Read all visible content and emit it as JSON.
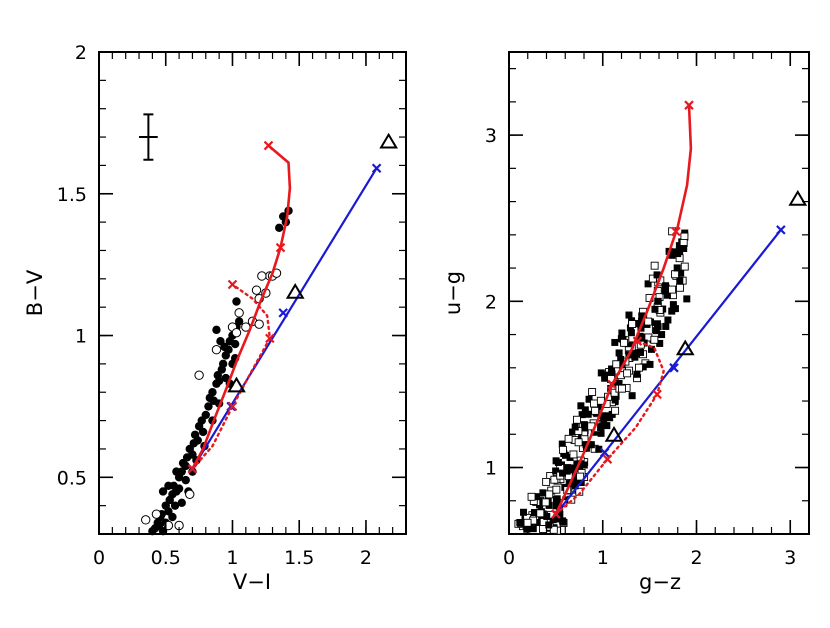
{
  "chart_data": [
    {
      "type": "scatter",
      "xlabel": "V−I",
      "ylabel": "B−V",
      "xlim": [
        0,
        2.3
      ],
      "ylim": [
        0.3,
        2.0
      ],
      "xticks": [
        "0",
        "0.5",
        "1",
        "1.5",
        "2"
      ],
      "yticks": [
        "0.5",
        "1",
        "1.5",
        "2"
      ],
      "colors": {
        "red": "#e8191e",
        "blue": "#1919d6"
      },
      "error_bar": {
        "x": 0.37,
        "y": 1.7,
        "xerr": 0.07,
        "yerr": 0.08
      },
      "filled_points": [
        [
          0.42,
          0.32
        ],
        [
          0.44,
          0.34
        ],
        [
          0.46,
          0.36
        ],
        [
          0.48,
          0.31
        ],
        [
          0.5,
          0.4
        ],
        [
          0.52,
          0.38
        ],
        [
          0.53,
          0.42
        ],
        [
          0.55,
          0.44
        ],
        [
          0.56,
          0.47
        ],
        [
          0.58,
          0.45
        ],
        [
          0.57,
          0.4
        ],
        [
          0.6,
          0.5
        ],
        [
          0.62,
          0.52
        ],
        [
          0.63,
          0.55
        ],
        [
          0.65,
          0.54
        ],
        [
          0.66,
          0.57
        ],
        [
          0.68,
          0.6
        ],
        [
          0.7,
          0.58
        ],
        [
          0.71,
          0.62
        ],
        [
          0.72,
          0.65
        ],
        [
          0.74,
          0.63
        ],
        [
          0.75,
          0.68
        ],
        [
          0.77,
          0.7
        ],
        [
          0.78,
          0.66
        ],
        [
          0.8,
          0.72
        ],
        [
          0.82,
          0.75
        ],
        [
          0.83,
          0.78
        ],
        [
          0.85,
          0.8
        ],
        [
          0.86,
          0.77
        ],
        [
          0.88,
          0.83
        ],
        [
          0.89,
          0.86
        ],
        [
          0.9,
          0.84
        ],
        [
          0.92,
          0.88
        ],
        [
          0.93,
          0.9
        ],
        [
          0.95,
          0.93
        ],
        [
          0.97,
          0.95
        ],
        [
          0.98,
          0.98
        ],
        [
          1.0,
          1.0
        ],
        [
          1.02,
          0.97
        ],
        [
          1.03,
          1.03
        ],
        [
          1.05,
          1.05
        ],
        [
          0.6,
          0.46
        ],
        [
          0.65,
          0.49
        ],
        [
          0.7,
          0.52
        ],
        [
          0.55,
          0.36
        ],
        [
          0.5,
          0.34
        ],
        [
          0.47,
          0.37
        ],
        [
          0.62,
          0.41
        ],
        [
          0.67,
          0.45
        ],
        [
          0.73,
          0.56
        ],
        [
          0.79,
          0.61
        ],
        [
          0.85,
          0.7
        ],
        [
          0.9,
          0.76
        ],
        [
          0.95,
          0.85
        ],
        [
          1.0,
          0.9
        ],
        [
          0.98,
          0.83
        ],
        [
          1.02,
          0.92
        ],
        [
          0.94,
          0.96
        ],
        [
          0.91,
          0.98
        ],
        [
          0.88,
          1.02
        ],
        [
          1.03,
          1.12
        ],
        [
          1.35,
          1.38
        ],
        [
          1.38,
          1.42
        ],
        [
          1.4,
          1.4
        ],
        [
          1.42,
          1.44
        ],
        [
          0.4,
          0.31
        ],
        [
          0.45,
          0.33
        ],
        [
          0.48,
          0.45
        ],
        [
          0.52,
          0.47
        ],
        [
          0.58,
          0.52
        ]
      ],
      "open_points": [
        [
          0.35,
          0.35
        ],
        [
          0.43,
          0.37
        ],
        [
          0.52,
          0.33
        ],
        [
          0.6,
          0.33
        ],
        [
          0.68,
          0.44
        ],
        [
          0.88,
          0.95
        ],
        [
          1.0,
          1.03
        ],
        [
          1.03,
          1.01
        ],
        [
          1.1,
          1.03
        ],
        [
          1.15,
          1.05
        ],
        [
          1.18,
          1.16
        ],
        [
          1.2,
          1.13
        ],
        [
          1.2,
          1.04
        ],
        [
          1.25,
          1.15
        ],
        [
          1.28,
          1.21
        ],
        [
          1.3,
          1.21
        ],
        [
          1.33,
          1.22
        ],
        [
          1.22,
          1.21
        ],
        [
          0.75,
          0.86
        ],
        [
          1.05,
          1.08
        ]
      ],
      "triangles": [
        [
          1.03,
          0.82
        ],
        [
          1.47,
          1.15
        ],
        [
          2.17,
          1.68
        ]
      ],
      "red_solid": [
        [
          0.7,
          0.53
        ],
        [
          0.78,
          0.6
        ],
        [
          0.86,
          0.7
        ],
        [
          0.96,
          0.82
        ],
        [
          1.04,
          0.92
        ],
        [
          1.13,
          1.02
        ],
        [
          1.21,
          1.12
        ],
        [
          1.3,
          1.22
        ],
        [
          1.36,
          1.31
        ],
        [
          1.41,
          1.42
        ],
        [
          1.43,
          1.52
        ],
        [
          1.42,
          1.61
        ],
        [
          1.27,
          1.67
        ]
      ],
      "red_markers": [
        [
          0.7,
          0.53
        ],
        [
          1.36,
          1.31
        ],
        [
          1.27,
          1.67
        ],
        [
          1.0,
          1.18
        ]
      ],
      "red_dotted": [
        [
          0.7,
          0.53
        ],
        [
          0.85,
          0.61
        ],
        [
          1.0,
          0.75
        ],
        [
          1.15,
          0.88
        ],
        [
          1.28,
          0.99
        ],
        [
          1.26,
          1.07
        ],
        [
          1.15,
          1.13
        ],
        [
          1.0,
          1.18
        ]
      ],
      "red_dotted_markers": [
        [
          1.0,
          0.75
        ],
        [
          1.28,
          0.99
        ]
      ],
      "blue_line": [
        [
          0.7,
          0.53
        ],
        [
          2.08,
          1.59
        ]
      ],
      "blue_markers": [
        [
          0.7,
          0.53
        ],
        [
          0.99,
          0.75
        ],
        [
          1.38,
          1.08
        ],
        [
          2.08,
          1.59
        ]
      ]
    },
    {
      "type": "scatter",
      "xlabel": "g−z",
      "ylabel": "u−g",
      "xlim": [
        0,
        3.2
      ],
      "ylim": [
        0.6,
        3.5
      ],
      "xticks": [
        "0",
        "1",
        "2",
        "3"
      ],
      "yticks": [
        "1",
        "2",
        "3"
      ],
      "colors": {
        "red": "#e8191e",
        "blue": "#1919d6"
      },
      "triangles": [
        [
          1.12,
          1.19
        ],
        [
          1.88,
          1.71
        ],
        [
          3.08,
          2.61
        ]
      ],
      "red_solid": [
        [
          0.5,
          0.72
        ],
        [
          0.65,
          0.9
        ],
        [
          0.8,
          1.09
        ],
        [
          0.95,
          1.29
        ],
        [
          1.1,
          1.5
        ],
        [
          1.3,
          1.7
        ],
        [
          1.48,
          1.95
        ],
        [
          1.65,
          2.2
        ],
        [
          1.8,
          2.45
        ],
        [
          1.9,
          2.7
        ],
        [
          1.94,
          2.92
        ],
        [
          1.92,
          3.18
        ]
      ],
      "red_markers": [
        [
          0.5,
          0.72
        ],
        [
          1.1,
          1.5
        ],
        [
          1.78,
          2.42
        ],
        [
          1.92,
          3.18
        ]
      ],
      "red_dotted": [
        [
          0.5,
          0.72
        ],
        [
          0.75,
          0.84
        ],
        [
          1.05,
          1.05
        ],
        [
          1.35,
          1.24
        ],
        [
          1.58,
          1.44
        ],
        [
          1.65,
          1.58
        ],
        [
          1.55,
          1.72
        ],
        [
          1.37,
          1.76
        ]
      ],
      "red_dotted_markers": [
        [
          1.05,
          1.05
        ],
        [
          1.58,
          1.44
        ],
        [
          1.37,
          1.76
        ]
      ],
      "blue_line": [
        [
          0.5,
          0.72
        ],
        [
          2.9,
          2.43
        ]
      ],
      "blue_markers": [
        [
          0.5,
          0.72
        ],
        [
          1.02,
          1.09
        ],
        [
          1.76,
          1.6
        ],
        [
          2.9,
          2.43
        ]
      ]
    }
  ]
}
